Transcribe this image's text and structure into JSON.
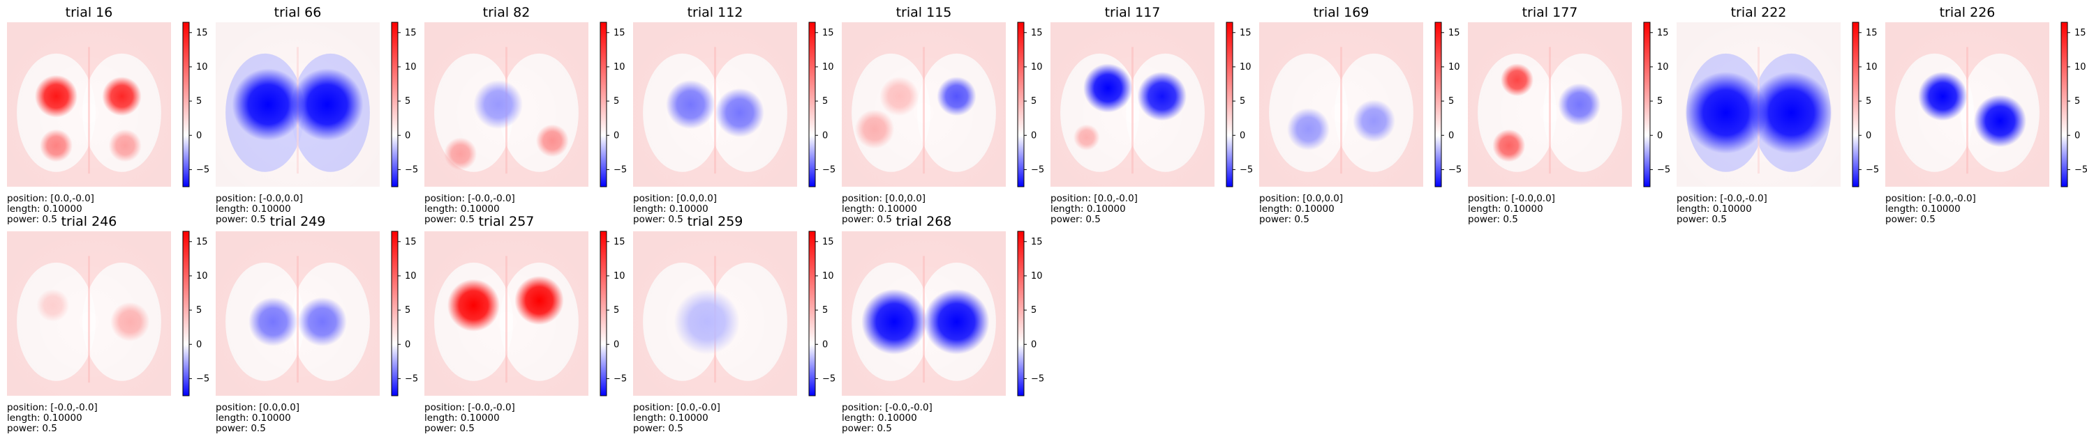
{
  "chart_data": {
    "type": "heatmap",
    "colormap": "bwr",
    "colorbar": {
      "vmin": -7.5,
      "vmax": 16.5,
      "ticks": [
        15,
        10,
        5,
        0,
        -5
      ],
      "tick_labels": [
        "15",
        "10",
        "5",
        "0",
        "−5"
      ]
    },
    "panels": [
      {
        "title": "trial 16",
        "position": "position: [0.0,-0.0]",
        "length": " length: 0.10000",
        "power": " power: 0.5",
        "level": 0.05,
        "spots": [
          {
            "x": 0.3,
            "y": 0.45,
            "r": 0.13,
            "v": 15
          },
          {
            "x": 0.7,
            "y": 0.45,
            "r": 0.12,
            "v": 14
          },
          {
            "x": 0.3,
            "y": 0.75,
            "r": 0.1,
            "v": 8
          },
          {
            "x": 0.72,
            "y": 0.75,
            "r": 0.1,
            "v": 6
          }
        ]
      },
      {
        "title": "trial 66",
        "position": "position: [-0.0,0.0]",
        "length": " length: 0.10000",
        "power": " power: 0.5",
        "level": -1.5,
        "spots": [
          {
            "x": 0.32,
            "y": 0.5,
            "r": 0.22,
            "v": -9
          },
          {
            "x": 0.68,
            "y": 0.5,
            "r": 0.22,
            "v": -8
          }
        ]
      },
      {
        "title": "trial 82",
        "position": "position: [-0.0,-0.0]",
        "length": " length: 0.10000",
        "power": " power: 0.5",
        "level": 0.05,
        "spots": [
          {
            "x": 0.22,
            "y": 0.8,
            "r": 0.1,
            "v": 6
          },
          {
            "x": 0.78,
            "y": 0.72,
            "r": 0.1,
            "v": 7
          },
          {
            "x": 0.45,
            "y": 0.5,
            "r": 0.15,
            "v": -3
          }
        ]
      },
      {
        "title": "trial 112",
        "position": "position: [0.0,0.0]",
        "length": " length: 0.10000",
        "power": " power: 0.5",
        "level": 0.05,
        "spots": [
          {
            "x": 0.35,
            "y": 0.5,
            "r": 0.15,
            "v": -4
          },
          {
            "x": 0.65,
            "y": 0.55,
            "r": 0.15,
            "v": -4
          }
        ]
      },
      {
        "title": "trial 115",
        "position": "position: [0.0,0.0]",
        "length": " length: 0.10000",
        "power": " power: 0.5",
        "level": 0.05,
        "spots": [
          {
            "x": 0.2,
            "y": 0.65,
            "r": 0.12,
            "v": 5
          },
          {
            "x": 0.35,
            "y": 0.45,
            "r": 0.12,
            "v": 4
          },
          {
            "x": 0.7,
            "y": 0.45,
            "r": 0.12,
            "v": -5
          }
        ]
      },
      {
        "title": "trial 117",
        "position": "position: [0.0,-0.0]",
        "length": " length: 0.10000",
        "power": " power: 0.5",
        "level": 0.05,
        "spots": [
          {
            "x": 0.35,
            "y": 0.4,
            "r": 0.15,
            "v": -8
          },
          {
            "x": 0.68,
            "y": 0.45,
            "r": 0.15,
            "v": -7
          },
          {
            "x": 0.22,
            "y": 0.7,
            "r": 0.08,
            "v": 5
          }
        ]
      },
      {
        "title": "trial 169",
        "position": "position: [0.0,0.0]",
        "length": " length: 0.10000",
        "power": " power: 0.5",
        "level": 0.05,
        "spots": [
          {
            "x": 0.3,
            "y": 0.65,
            "r": 0.13,
            "v": -3
          },
          {
            "x": 0.7,
            "y": 0.6,
            "r": 0.13,
            "v": -3
          }
        ]
      },
      {
        "title": "trial 177",
        "position": "position: [-0.0,0.0]",
        "length": " length: 0.10000",
        "power": " power: 0.5",
        "level": 0.05,
        "spots": [
          {
            "x": 0.3,
            "y": 0.35,
            "r": 0.1,
            "v": 12
          },
          {
            "x": 0.25,
            "y": 0.75,
            "r": 0.1,
            "v": 10
          },
          {
            "x": 0.68,
            "y": 0.5,
            "r": 0.13,
            "v": -4
          }
        ]
      },
      {
        "title": "trial 222",
        "position": "position: [-0.0,-0.0]",
        "length": " length: 0.10000",
        "power": " power: 0.5",
        "level": -1.5,
        "spots": [
          {
            "x": 0.3,
            "y": 0.55,
            "r": 0.25,
            "v": -10
          },
          {
            "x": 0.7,
            "y": 0.55,
            "r": 0.25,
            "v": -10
          }
        ]
      },
      {
        "title": "trial 226",
        "position": "position: [-0.0,-0.0]",
        "length": " length: 0.10000",
        "power": " power: 0.5",
        "level": 0.05,
        "spots": [
          {
            "x": 0.35,
            "y": 0.45,
            "r": 0.15,
            "v": -8
          },
          {
            "x": 0.7,
            "y": 0.6,
            "r": 0.16,
            "v": -9
          }
        ]
      },
      {
        "title": "trial 246",
        "position": "position: [-0.0,-0.0]",
        "length": " length: 0.10000",
        "power": " power: 0.5",
        "level": 0.05,
        "spots": [
          {
            "x": 0.75,
            "y": 0.55,
            "r": 0.12,
            "v": 5
          },
          {
            "x": 0.28,
            "y": 0.45,
            "r": 0.1,
            "v": 3
          }
        ]
      },
      {
        "title": "trial 249",
        "position": "position: [0.0,0.0]",
        "length": " length: 0.10000",
        "power": " power: 0.5",
        "level": 0.05,
        "spots": [
          {
            "x": 0.35,
            "y": 0.55,
            "r": 0.15,
            "v": -4
          },
          {
            "x": 0.65,
            "y": 0.55,
            "r": 0.15,
            "v": -4
          }
        ]
      },
      {
        "title": "trial 257",
        "position": "position: [-0.0,-0.0]",
        "length": " length: 0.10000",
        "power": " power: 0.5",
        "level": 0.05,
        "spots": [
          {
            "x": 0.3,
            "y": 0.45,
            "r": 0.16,
            "v": 17
          },
          {
            "x": 0.7,
            "y": 0.42,
            "r": 0.15,
            "v": 17
          }
        ]
      },
      {
        "title": "trial 259",
        "position": "position: [0.0,-0.0]",
        "length": " length: 0.10000",
        "power": " power: 0.5",
        "level": 0.05,
        "spots": [
          {
            "x": 0.45,
            "y": 0.55,
            "r": 0.2,
            "v": -2
          }
        ]
      },
      {
        "title": "trial 268",
        "position": "position: [-0.0,-0.0]",
        "length": " length: 0.10000",
        "power": " power: 0.5",
        "level": 0.05,
        "spots": [
          {
            "x": 0.32,
            "y": 0.55,
            "r": 0.2,
            "v": -8
          },
          {
            "x": 0.7,
            "y": 0.55,
            "r": 0.2,
            "v": -8
          }
        ]
      }
    ]
  }
}
